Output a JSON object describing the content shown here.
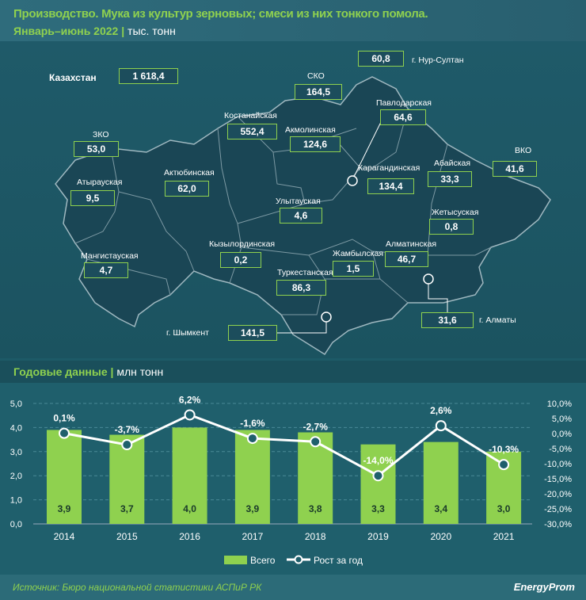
{
  "header": {
    "title": "Производство. Мука из культур зерновых; смеси из них тонкого помола.",
    "period": "Январь–июнь 2022",
    "unit": "тыс. тонн"
  },
  "map": {
    "total": {
      "label": "Казахстан",
      "value": "1 618,4"
    },
    "regions": [
      {
        "name": "г. Нур-Султан",
        "value": "60,8"
      },
      {
        "name": "СКО",
        "value": "164,5"
      },
      {
        "name": "Павлодарская",
        "value": "64,6"
      },
      {
        "name": "Костанайская",
        "value": "552,4"
      },
      {
        "name": "Акмолинская",
        "value": "124,6"
      },
      {
        "name": "ЗКО",
        "value": "53,0"
      },
      {
        "name": "ВКО",
        "value": "41,6"
      },
      {
        "name": "Абайская",
        "value": "33,3"
      },
      {
        "name": "Актюбинская",
        "value": "62,0"
      },
      {
        "name": "Атырауская",
        "value": "9,5"
      },
      {
        "name": "Карагандинская",
        "value": "134,4"
      },
      {
        "name": "Улытауская",
        "value": "4,6"
      },
      {
        "name": "Жетысуская",
        "value": "0,8"
      },
      {
        "name": "Кызылординская",
        "value": "0,2"
      },
      {
        "name": "Жамбылская",
        "value": "1,5"
      },
      {
        "name": "Алматинская",
        "value": "46,7"
      },
      {
        "name": "Мангистауская",
        "value": "4,7"
      },
      {
        "name": "Туркестанская",
        "value": "86,3"
      },
      {
        "name": "г. Алматы",
        "value": "31,6"
      },
      {
        "name": "г. Шымкент",
        "value": "141,5"
      }
    ]
  },
  "section": {
    "title": "Годовые данные",
    "unit": "млн тонн"
  },
  "chart_data": {
    "type": "bar+line",
    "categories": [
      "2014",
      "2015",
      "2016",
      "2017",
      "2018",
      "2019",
      "2020",
      "2021"
    ],
    "series": [
      {
        "name": "Всего",
        "type": "bar",
        "axis": "left",
        "values": [
          3.9,
          3.7,
          4.0,
          3.9,
          3.8,
          3.3,
          3.4,
          3.0
        ],
        "labels": [
          "3,9",
          "3,7",
          "4,0",
          "3,9",
          "3,8",
          "3,3",
          "3,4",
          "3,0"
        ],
        "color": "#8fd14f"
      },
      {
        "name": "Рост за год",
        "type": "line",
        "axis": "right",
        "values": [
          0.1,
          -3.7,
          6.2,
          -1.6,
          -2.7,
          -14.0,
          2.6,
          -10.3
        ],
        "labels": [
          "0,1%",
          "-3,7%",
          "6,2%",
          "-1,6%",
          "-2,7%",
          "-14,0%",
          "2,6%",
          "-10,3%"
        ],
        "color": "#ffffff"
      }
    ],
    "y_left": {
      "range": [
        0,
        5
      ],
      "ticks": [
        "0,0",
        "1,0",
        "2,0",
        "3,0",
        "4,0",
        "5,0"
      ]
    },
    "y_right": {
      "range": [
        -30,
        10
      ],
      "ticks": [
        "-30,0%",
        "-25,0%",
        "-20,0%",
        "-15,0%",
        "-10,0%",
        "-5,0%",
        "0,0%",
        "5,0%",
        "10,0%"
      ]
    },
    "grid": true,
    "legend": "bottom"
  },
  "footer": {
    "source": "Источник: Бюро национальной статистики АСПиР РК",
    "logo": "EnergyProm"
  }
}
